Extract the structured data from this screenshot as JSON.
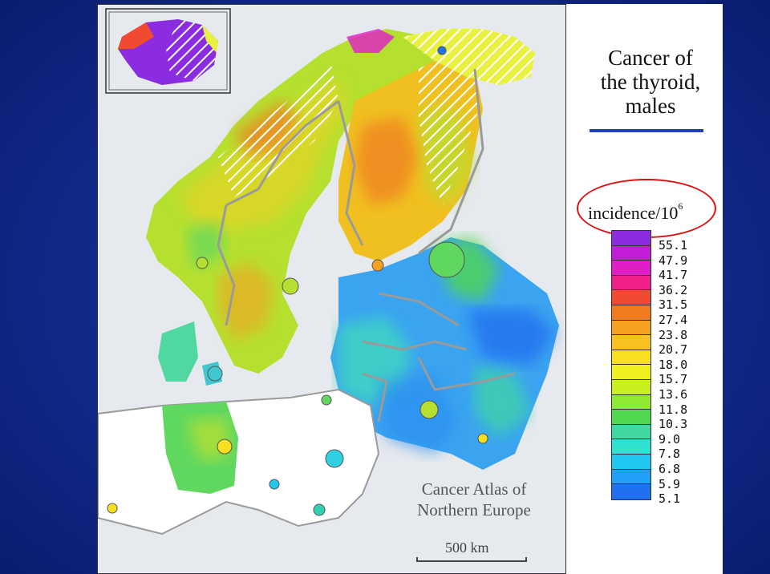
{
  "title": "Cancer of the thyroid, males",
  "title_lines": [
    "Cancer of",
    "the thyroid,",
    "males"
  ],
  "unit": {
    "text": "incidence/10",
    "exponent": "6"
  },
  "legend": {
    "labels": [
      "55.1",
      "47.9",
      "41.7",
      "36.2",
      "31.5",
      "27.4",
      "23.8",
      "20.7",
      "18.0",
      "15.7",
      "13.6",
      "11.8",
      "10.3",
      "9.0",
      "7.8",
      "6.8",
      "5.9",
      "5.1"
    ],
    "colors": [
      "#8b2ce0",
      "#c21ed8",
      "#e01ec8",
      "#f0208a",
      "#f04a30",
      "#f07a20",
      "#f5a020",
      "#f8c020",
      "#f8e020",
      "#eef020",
      "#c8f020",
      "#90e830",
      "#50d850",
      "#40d8a0",
      "#30e0d0",
      "#20c8f0",
      "#20a0f8",
      "#2070f0"
    ]
  },
  "credit": [
    "Cancer Atlas of",
    "Northern Europe"
  ],
  "scale_bar": "500 km",
  "accent_colors": {
    "title_rule": "#1e40c0",
    "oval": "#dd1111",
    "no_data": "#ffffff",
    "sea": "#e6e9ee"
  }
}
